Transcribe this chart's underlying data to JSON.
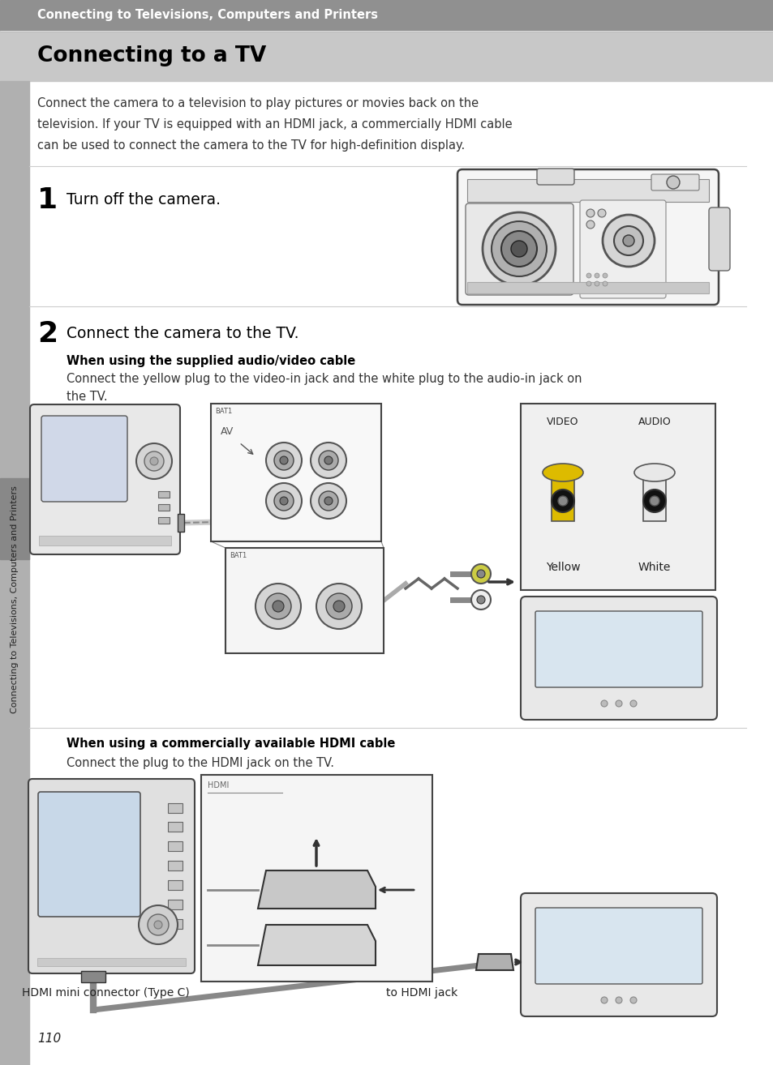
{
  "bg_color": "#ffffff",
  "header_bg": "#909090",
  "header_text": "Connecting to Televisions, Computers and Printers",
  "title_bg": "#c8c8c8",
  "title": "Connecting to a TV",
  "intro_line1": "Connect the camera to a television to play pictures or movies back on the",
  "intro_line2": "television. If your TV is equipped with an HDMI jack, a commercially HDMI cable",
  "intro_line3": "can be used to connect the camera to the TV for high-definition display.",
  "step1_num": "1",
  "step1_text": "Turn off the camera.",
  "step2_num": "2",
  "step2_text": "Connect the camera to the TV.",
  "step2a_title": "When using the supplied audio/video cable",
  "step2a_line1": "Connect the yellow plug to the video-in jack and the white plug to the audio-in jack on",
  "step2a_line2": "the TV.",
  "step2b_title": "When using a commercially available HDMI cable",
  "step2b_text": "Connect the plug to the HDMI jack on the TV.",
  "label_yellow": "Yellow",
  "label_white": "White",
  "label_video": "VIDEO",
  "label_audio": "AUDIO",
  "label_hdmi_connector": "HDMI mini connector (Type C)",
  "label_hdmi_jack": "to HDMI jack",
  "page_num": "110",
  "sidebar_text": "Connecting to Televisions, Computers and Printers",
  "sidebar_color": "#b0b0b0",
  "sidebar_tab_color": "#888888",
  "line_color": "#cccccc",
  "text_color": "#111111",
  "body_text_color": "#333333"
}
